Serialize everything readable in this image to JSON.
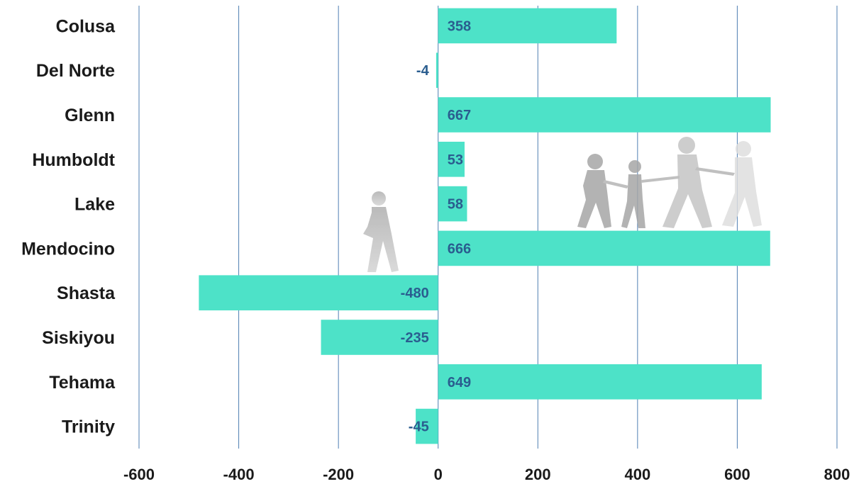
{
  "chart_data": {
    "type": "bar",
    "orientation": "horizontal",
    "categories": [
      "Colusa",
      "Del Norte",
      "Glenn",
      "Humboldt",
      "Lake",
      "Mendocino",
      "Shasta",
      "Siskiyou",
      "Tehama",
      "Trinity"
    ],
    "values": [
      358,
      -4,
      667,
      53,
      58,
      666,
      -480,
      -235,
      649,
      -45
    ],
    "value_labels": [
      "358",
      "-4",
      "667",
      "53",
      "58",
      "666",
      "-480",
      "-235",
      "649",
      "-45"
    ],
    "xlim": [
      -600,
      800
    ],
    "xticks": [
      -600,
      -400,
      -200,
      0,
      200,
      400,
      600,
      800
    ],
    "xtick_labels": [
      "-600",
      "-400",
      "-200",
      "0",
      "200",
      "400",
      "600",
      "800"
    ],
    "grid": "vertical",
    "title": "",
    "xlabel": "",
    "ylabel": "",
    "colors": {
      "bar": "#4de2c8",
      "value_label": "#2a5d8f",
      "grid": "#4f7fb2",
      "text": "#1a1a1a"
    },
    "decoration": "walking-people-silhouettes"
  }
}
